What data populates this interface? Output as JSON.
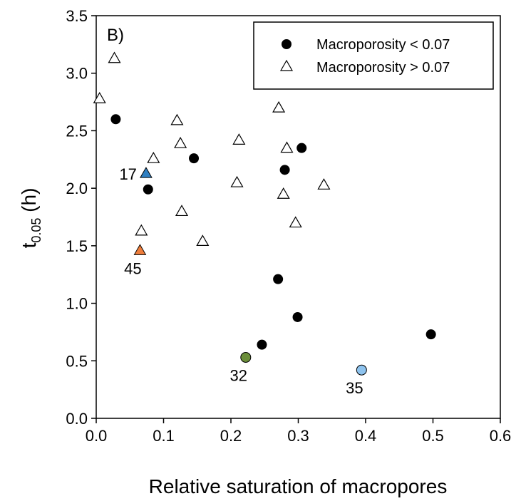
{
  "chart_data": {
    "type": "scatter",
    "panel_label": "B)",
    "xlabel": "Relative saturation of macropores",
    "ylabel": {
      "base": "t",
      "subscript": "0.05",
      "suffix": " (h)"
    },
    "xlim": [
      0,
      0.6
    ],
    "ylim": [
      0,
      3.5
    ],
    "x_ticks": [
      "0.0",
      "0.1",
      "0.2",
      "0.3",
      "0.4",
      "0.5",
      "0.6"
    ],
    "y_ticks": [
      "0.0",
      "0.5",
      "1.0",
      "1.5",
      "2.0",
      "2.5",
      "3.0",
      "3.5"
    ],
    "grid": false,
    "legend_position": "top-right",
    "series": [
      {
        "name": "Macroporosity <  0.07",
        "marker": "circle-filled",
        "color": "#000000",
        "points": [
          {
            "x": 0.029,
            "y": 2.6
          },
          {
            "x": 0.077,
            "y": 1.99
          },
          {
            "x": 0.145,
            "y": 2.26
          },
          {
            "x": 0.28,
            "y": 2.16
          },
          {
            "x": 0.305,
            "y": 2.35
          },
          {
            "x": 0.27,
            "y": 1.21
          },
          {
            "x": 0.299,
            "y": 0.88
          },
          {
            "x": 0.246,
            "y": 0.64
          },
          {
            "x": 0.497,
            "y": 0.73
          }
        ]
      },
      {
        "name": "Macroporosity > 0.07",
        "marker": "triangle-open",
        "color": "#000000",
        "points": [
          {
            "x": 0.005,
            "y": 2.78
          },
          {
            "x": 0.027,
            "y": 3.13
          },
          {
            "x": 0.085,
            "y": 2.26
          },
          {
            "x": 0.067,
            "y": 1.63
          },
          {
            "x": 0.12,
            "y": 2.59
          },
          {
            "x": 0.125,
            "y": 2.39
          },
          {
            "x": 0.127,
            "y": 1.8
          },
          {
            "x": 0.158,
            "y": 1.54
          },
          {
            "x": 0.212,
            "y": 2.42
          },
          {
            "x": 0.209,
            "y": 2.05
          },
          {
            "x": 0.271,
            "y": 2.7
          },
          {
            "x": 0.283,
            "y": 2.35
          },
          {
            "x": 0.278,
            "y": 1.95
          },
          {
            "x": 0.296,
            "y": 1.7
          },
          {
            "x": 0.338,
            "y": 2.03
          }
        ]
      }
    ],
    "highlighted": [
      {
        "label": "17",
        "x": 0.074,
        "y": 2.13,
        "marker": "triangle-filled",
        "color": "#2f7fc1",
        "label_side": "left"
      },
      {
        "label": "45",
        "x": 0.065,
        "y": 1.46,
        "marker": "triangle-filled",
        "color": "#ee7d3b",
        "label_side": "below"
      },
      {
        "label": "32",
        "x": 0.222,
        "y": 0.53,
        "marker": "circle-filled",
        "color": "#6b8e3a",
        "label_side": "below"
      },
      {
        "label": "35",
        "x": 0.394,
        "y": 0.42,
        "marker": "circle-filled",
        "color": "#8ec3ee",
        "label_side": "below"
      }
    ]
  }
}
